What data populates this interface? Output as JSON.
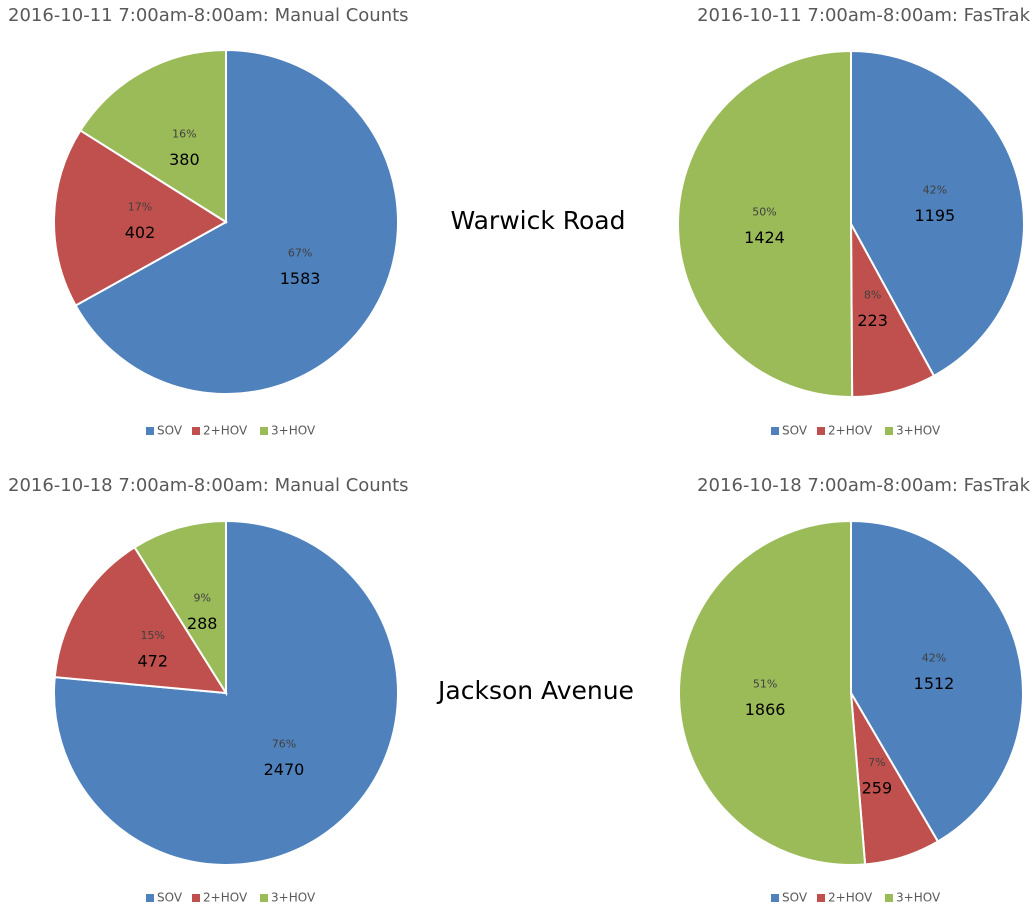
{
  "chart_data": [
    {
      "type": "pie",
      "title": "2016-10-11 7:00am-8:00am: Manual Counts",
      "categories": [
        "SOV",
        "2+HOV",
        "3+HOV"
      ],
      "values": [
        1583,
        402,
        380
      ],
      "percent_labels": [
        "67%",
        "17%",
        "16%"
      ],
      "colors": [
        "#4f81bd",
        "#c0504d",
        "#9bbb59"
      ]
    },
    {
      "type": "pie",
      "title": "2016-10-11 7:00am-8:00am: FasTrak",
      "categories": [
        "SOV",
        "2+HOV",
        "3+HOV"
      ],
      "values": [
        1195,
        223,
        1424
      ],
      "percent_labels": [
        "42%",
        "8%",
        "50%"
      ],
      "colors": [
        "#4f81bd",
        "#c0504d",
        "#9bbb59"
      ]
    },
    {
      "type": "pie",
      "title": "2016-10-18 7:00am-8:00am: Manual Counts",
      "categories": [
        "SOV",
        "2+HOV",
        "3+HOV"
      ],
      "values": [
        2470,
        472,
        288
      ],
      "percent_labels": [
        "76%",
        "15%",
        "9%"
      ],
      "colors": [
        "#4f81bd",
        "#c0504d",
        "#9bbb59"
      ]
    },
    {
      "type": "pie",
      "title": "2016-10-18 7:00am-8:00am: FasTrak",
      "categories": [
        "SOV",
        "2+HOV",
        "3+HOV"
      ],
      "values": [
        1512,
        259,
        1866
      ],
      "percent_labels": [
        "42%",
        "7%",
        "51%"
      ],
      "colors": [
        "#4f81bd",
        "#c0504d",
        "#9bbb59"
      ]
    }
  ],
  "locations": [
    "Warwick Road",
    "Jackson Avenue"
  ]
}
